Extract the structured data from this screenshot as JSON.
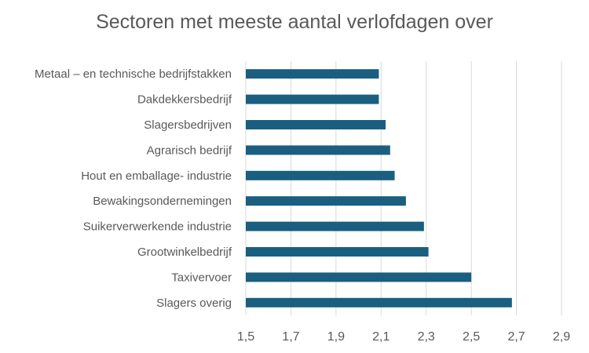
{
  "chart_data": {
    "type": "bar",
    "orientation": "horizontal",
    "title": "Sectoren met meeste aantal verlofdagen over",
    "xlabel": "",
    "ylabel": "",
    "categories": [
      "Metaal – en technische bedrijfstakken",
      "Dakdekkersbedrijf",
      "Slagersbedrijven",
      "Agrarisch bedrijf",
      "Hout en emballage- industrie",
      "Bewakingsondernemingen",
      "Suikerverwerkende industrie",
      "Grootwinkelbedrijf",
      "Taxivervoer",
      "Slagers overig"
    ],
    "values": [
      2.09,
      2.09,
      2.12,
      2.14,
      2.16,
      2.21,
      2.29,
      2.31,
      2.5,
      2.68
    ],
    "xlim": [
      1.5,
      2.9
    ],
    "x_ticks": [
      "1,5",
      "1,7",
      "1,9",
      "2,1",
      "2,3",
      "2,5",
      "2,7",
      "2,9"
    ],
    "grid": "vertical",
    "legend": "none",
    "colors": {
      "bar": "#1a5e80",
      "grid": "#d9d9d9",
      "text": "#595959"
    }
  }
}
